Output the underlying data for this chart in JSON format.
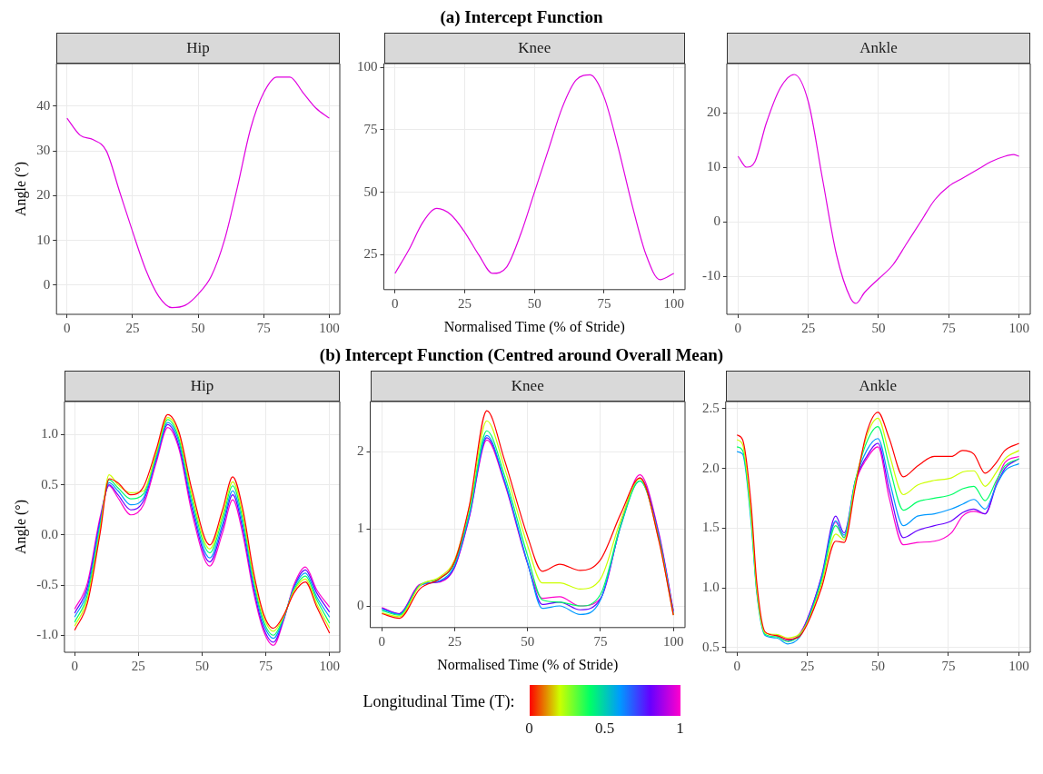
{
  "chart_data": [
    {
      "type": "line",
      "title": "Hip",
      "ylabel": "Angle (°)",
      "xlim": [
        -4,
        104
      ],
      "xticks": [
        0,
        25,
        50,
        75,
        100
      ],
      "ylim": [
        -6.5,
        49.5
      ],
      "yticks": [
        0,
        10,
        20,
        30,
        40
      ],
      "grid": true,
      "x": [
        0,
        5,
        10,
        15,
        20,
        25,
        30,
        35,
        40,
        45,
        50,
        55,
        60,
        65,
        70,
        75,
        80,
        85,
        90,
        95,
        100
      ],
      "series": [
        {
          "color": "#e000e0",
          "values": [
            37.3,
            33.5,
            32.5,
            30,
            21,
            12,
            3.5,
            -2.5,
            -5,
            -4.5,
            -2,
            2,
            10,
            22,
            35,
            43,
            46.5,
            46.5,
            43,
            39.5,
            37.3
          ]
        }
      ]
    },
    {
      "type": "line",
      "title": "Knee",
      "subtitle": "(a) Intercept Function",
      "xlabel": "Normalised Time (% of Stride)",
      "xlim": [
        -4,
        104
      ],
      "xticks": [
        0,
        25,
        50,
        75,
        100
      ],
      "ylim": [
        11,
        101.5
      ],
      "yticks": [
        25,
        50,
        75,
        100
      ],
      "grid": true,
      "x": [
        0,
        5,
        10,
        15,
        20,
        25,
        30,
        35,
        40,
        45,
        50,
        55,
        60,
        65,
        70,
        75,
        80,
        85,
        90,
        95,
        100
      ],
      "series": [
        {
          "color": "#e000e0",
          "values": [
            17.5,
            27,
            38,
            43.5,
            41,
            34,
            25,
            17.5,
            20,
            33,
            50,
            67,
            84,
            95,
            97,
            88,
            68,
            45,
            25,
            15,
            17.5
          ]
        }
      ]
    },
    {
      "type": "line",
      "title": "Ankle",
      "xlim": [
        -4,
        104
      ],
      "xticks": [
        0,
        25,
        50,
        75,
        100
      ],
      "ylim": [
        -17,
        29
      ],
      "yticks": [
        {
          "value": -10,
          "label": "-10"
        },
        0,
        10,
        20
      ],
      "grid": true,
      "x": [
        0,
        3,
        6,
        10,
        15,
        20,
        25,
        30,
        35,
        40,
        42,
        45,
        50,
        55,
        60,
        65,
        70,
        75,
        80,
        85,
        90,
        95,
        98,
        100
      ],
      "series": [
        {
          "color": "#e000e0",
          "values": [
            12,
            10,
            11,
            18,
            24.5,
            27,
            22,
            8,
            -6,
            -14,
            -15,
            -13,
            -10.5,
            -8,
            -4,
            0,
            4,
            6.5,
            8,
            9.5,
            11,
            12,
            12.3,
            12
          ]
        }
      ]
    },
    {
      "type": "line",
      "title": "Hip",
      "ylabel": "Angle (°)",
      "xlim": [
        -4,
        104
      ],
      "xticks": [
        0,
        25,
        50,
        75,
        100
      ],
      "ylim": [
        -1.17,
        1.33
      ],
      "yticks": [
        {
          "value": -1,
          "label": "-1.0"
        },
        {
          "value": -0.5,
          "label": "-0.5"
        },
        {
          "value": 0,
          "label": "0.0"
        },
        0.5,
        {
          "value": 1,
          "label": "1.0"
        }
      ],
      "grid": true,
      "x": [
        0,
        5,
        10,
        13.5,
        17,
        22,
        27,
        32,
        36.5,
        41,
        46,
        53,
        58,
        62,
        66,
        70,
        74,
        78,
        82,
        86,
        90.5,
        95,
        100
      ],
      "series": [
        {
          "color": "#ff0000",
          "values": [
            -0.95,
            -0.68,
            0.02,
            0.56,
            0.52,
            0.4,
            0.48,
            0.85,
            1.2,
            1.02,
            0.45,
            -0.1,
            0.25,
            0.58,
            0.25,
            -0.35,
            -0.78,
            -0.93,
            -0.8,
            -0.58,
            -0.47,
            -0.72,
            -0.98
          ]
        },
        {
          "color": "#ccff00",
          "values": [
            -0.91,
            -0.64,
            0.05,
            0.6,
            0.5,
            0.42,
            0.44,
            0.82,
            1.17,
            0.99,
            0.4,
            -0.14,
            0.2,
            0.53,
            0.2,
            -0.39,
            -0.81,
            -0.96,
            -0.81,
            -0.56,
            -0.44,
            -0.69,
            -0.93
          ]
        },
        {
          "color": "#00ff66",
          "values": [
            -0.87,
            -0.6,
            0.08,
            0.55,
            0.47,
            0.36,
            0.41,
            0.8,
            1.15,
            0.95,
            0.36,
            -0.18,
            0.16,
            0.49,
            0.15,
            -0.43,
            -0.85,
            -1.0,
            -0.82,
            -0.55,
            -0.41,
            -0.65,
            -0.88
          ]
        },
        {
          "color": "#0099ff",
          "values": [
            -0.82,
            -0.56,
            0.12,
            0.52,
            0.44,
            0.3,
            0.37,
            0.77,
            1.12,
            0.92,
            0.31,
            -0.23,
            0.11,
            0.44,
            0.1,
            -0.47,
            -0.88,
            -1.03,
            -0.83,
            -0.53,
            -0.38,
            -0.62,
            -0.82
          ]
        },
        {
          "color": "#6600ff",
          "values": [
            -0.78,
            -0.52,
            0.15,
            0.5,
            0.4,
            0.25,
            0.34,
            0.75,
            1.1,
            0.88,
            0.27,
            -0.27,
            0.07,
            0.4,
            0.05,
            -0.51,
            -0.92,
            -1.07,
            -0.84,
            -0.52,
            -0.35,
            -0.58,
            -0.77
          ]
        },
        {
          "color": "#ff00cc",
          "values": [
            -0.74,
            -0.48,
            0.18,
            0.49,
            0.37,
            0.2,
            0.3,
            0.72,
            1.07,
            0.85,
            0.22,
            -0.31,
            0.02,
            0.35,
            0.0,
            -0.55,
            -0.95,
            -1.1,
            -0.85,
            -0.5,
            -0.32,
            -0.55,
            -0.72
          ]
        }
      ]
    },
    {
      "type": "line",
      "title": "Knee",
      "subtitle": "(b) Intercept Function (Centred around Overall Mean)",
      "xlabel": "Normalised Time (% of Stride)",
      "xlim": [
        -4,
        104
      ],
      "xticks": [
        0,
        25,
        50,
        75,
        100
      ],
      "ylim": [
        -0.28,
        2.65
      ],
      "yticks": [
        0,
        1,
        2
      ],
      "grid": true,
      "clabel": "Longitudinal Time (T):",
      "clim": [
        0,
        1
      ],
      "cticks": [
        0,
        0.5,
        1
      ],
      "x": [
        0,
        6,
        13,
        20,
        25,
        30,
        36,
        42,
        50,
        55,
        61,
        68,
        75,
        82,
        88.5,
        95,
        100
      ],
      "series": [
        {
          "color": "#ff0000",
          "values": [
            -0.1,
            -0.16,
            0.22,
            0.36,
            0.58,
            1.3,
            2.53,
            1.9,
            0.9,
            0.45,
            0.54,
            0.46,
            0.6,
            1.2,
            1.66,
            0.85,
            -0.12
          ]
        },
        {
          "color": "#ccff00",
          "values": [
            -0.09,
            -0.14,
            0.26,
            0.38,
            0.6,
            1.28,
            2.4,
            1.8,
            0.78,
            0.3,
            0.3,
            0.22,
            0.35,
            1.12,
            1.65,
            0.86,
            -0.12
          ]
        },
        {
          "color": "#00ff66",
          "values": [
            -0.06,
            -0.12,
            0.27,
            0.36,
            0.56,
            1.22,
            2.27,
            1.7,
            0.65,
            0.08,
            0.05,
            0.0,
            0.15,
            1.06,
            1.62,
            0.88,
            -0.11
          ]
        },
        {
          "color": "#0099ff",
          "values": [
            -0.04,
            -0.11,
            0.26,
            0.33,
            0.53,
            1.18,
            2.21,
            1.64,
            0.56,
            -0.03,
            0.0,
            -0.11,
            0.08,
            1.04,
            1.62,
            0.9,
            -0.09
          ]
        },
        {
          "color": "#6600ff",
          "values": [
            -0.03,
            -0.1,
            0.27,
            0.32,
            0.51,
            1.16,
            2.18,
            1.62,
            0.55,
            0.02,
            0.05,
            -0.05,
            0.09,
            1.05,
            1.66,
            0.93,
            -0.07
          ]
        },
        {
          "color": "#ff00cc",
          "values": [
            -0.02,
            -0.1,
            0.28,
            0.31,
            0.5,
            1.15,
            2.15,
            1.6,
            0.55,
            0.1,
            0.12,
            0.0,
            0.1,
            1.06,
            1.7,
            0.95,
            -0.06
          ]
        }
      ]
    },
    {
      "type": "line",
      "title": "Ankle",
      "xlim": [
        -4,
        104
      ],
      "xticks": [
        0,
        25,
        50,
        75,
        100
      ],
      "ylim": [
        0.46,
        2.56
      ],
      "yticks": [
        0.5,
        {
          "value": 1,
          "label": "1.0"
        },
        1.5,
        {
          "value": 2,
          "label": "2.0"
        },
        2.5
      ],
      "grid": true,
      "x": [
        0,
        2,
        5,
        7,
        10,
        14,
        18,
        22,
        25,
        30,
        35,
        38,
        42,
        46,
        50,
        54,
        59,
        64,
        70,
        76,
        80,
        84,
        88,
        92,
        95,
        100
      ],
      "series": [
        {
          "color": "#ff0000",
          "values": [
            2.28,
            2.24,
            1.7,
            1.05,
            0.63,
            0.6,
            0.57,
            0.59,
            0.7,
            1.0,
            1.39,
            1.38,
            1.85,
            2.3,
            2.47,
            2.25,
            1.93,
            2.02,
            2.1,
            2.1,
            2.15,
            2.12,
            1.96,
            2.05,
            2.15,
            2.21
          ]
        },
        {
          "color": "#ccff00",
          "values": [
            2.24,
            2.2,
            1.62,
            1.0,
            0.62,
            0.61,
            0.58,
            0.61,
            0.71,
            1.03,
            1.45,
            1.4,
            1.88,
            2.27,
            2.42,
            2.12,
            1.78,
            1.86,
            1.9,
            1.92,
            1.97,
            1.98,
            1.85,
            1.97,
            2.08,
            2.15
          ]
        },
        {
          "color": "#00ff66",
          "values": [
            2.18,
            2.15,
            1.58,
            0.98,
            0.61,
            0.59,
            0.55,
            0.6,
            0.72,
            1.06,
            1.52,
            1.42,
            1.9,
            2.22,
            2.35,
            2.02,
            1.65,
            1.72,
            1.75,
            1.78,
            1.83,
            1.85,
            1.73,
            1.9,
            2.02,
            2.08
          ]
        },
        {
          "color": "#0099ff",
          "values": [
            2.14,
            2.12,
            1.55,
            0.96,
            0.6,
            0.58,
            0.53,
            0.58,
            0.72,
            1.08,
            1.56,
            1.44,
            1.9,
            2.15,
            2.25,
            1.9,
            1.52,
            1.6,
            1.62,
            1.66,
            1.7,
            1.74,
            1.66,
            1.86,
            1.98,
            2.04
          ]
        },
        {
          "color": "#6600ff",
          "values": [
            null,
            null,
            null,
            null,
            null,
            null,
            0.55,
            0.6,
            0.74,
            1.1,
            1.6,
            1.46,
            1.9,
            2.1,
            2.21,
            1.82,
            1.42,
            1.48,
            1.52,
            1.56,
            1.63,
            1.66,
            1.62,
            1.86,
            2.0,
            2.08
          ]
        },
        {
          "color": "#ff00cc",
          "values": [
            null,
            null,
            null,
            null,
            null,
            0.6,
            0.56,
            0.61,
            0.74,
            1.09,
            1.55,
            1.42,
            1.88,
            2.08,
            2.18,
            1.75,
            1.36,
            1.38,
            1.39,
            1.46,
            1.6,
            1.64,
            1.62,
            1.88,
            2.05,
            2.1
          ]
        }
      ]
    }
  ]
}
